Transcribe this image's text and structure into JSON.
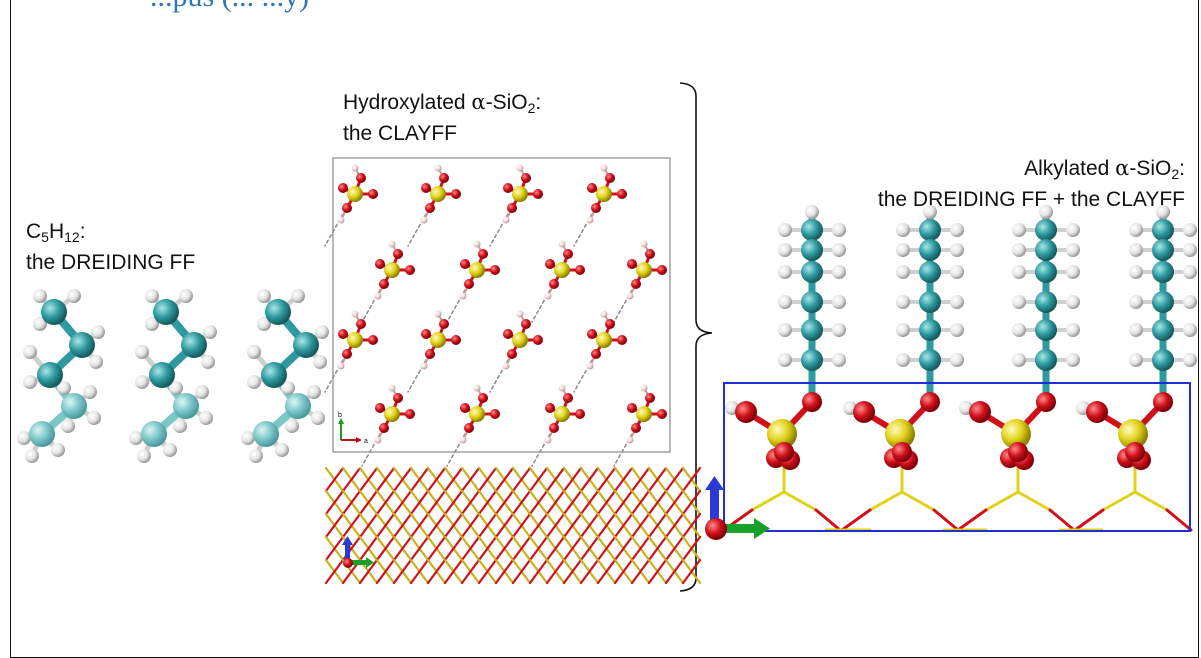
{
  "header": {
    "title_fragment": "...pus (... ...y)"
  },
  "labels": {
    "pentane": {
      "formula_main": "C",
      "sub1": "5",
      "mid": "H",
      "sub2": "12",
      "tail": ":",
      "ff": "the DREIDING FF"
    },
    "hydroxylated": {
      "prefix": "Hydroxylated ",
      "alpha": "α",
      "suffix": "-SiO",
      "sub": "2",
      "tail": ":",
      "ff": "the CLAYFF"
    },
    "alkylated": {
      "prefix": "Alkylated ",
      "alpha": "α",
      "suffix": "-SiO",
      "sub": "2",
      "tail": ":",
      "ff": "the DREIDING FF + the CLAYFF"
    }
  },
  "axis_labels": {
    "b": "b",
    "a": "a"
  },
  "colors": {
    "carbon": "#2e9aa0",
    "carbon_light": "#7cc6c8",
    "hydrogen": "#e4e4e4",
    "oxygen": "#d0101a",
    "silicon": "#e0d21a",
    "cell_box": "#1e2fd6",
    "panel_border": "#8a8a8a",
    "title": "#2f75b5"
  }
}
